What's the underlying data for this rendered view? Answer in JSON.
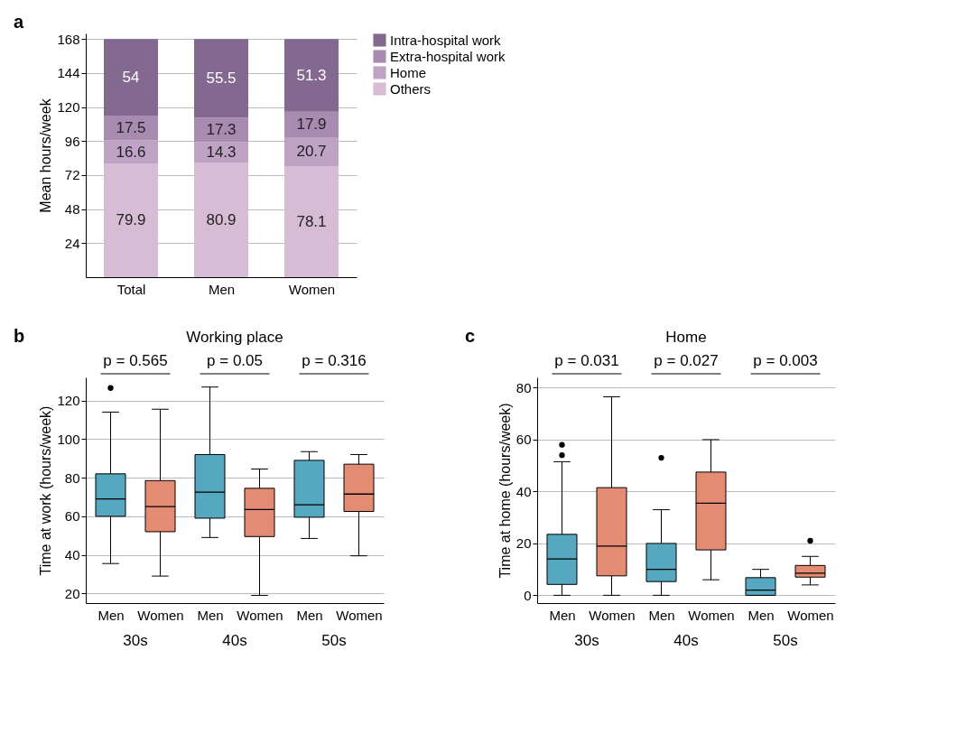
{
  "chart_data": [
    {
      "type": "bar",
      "stacked": true,
      "ylabel": "Mean hours/week",
      "categories": [
        "Total",
        "Men",
        "Women"
      ],
      "series": [
        {
          "name": "Others",
          "color": "#d6bcd4",
          "values": [
            79.9,
            80.9,
            78.1
          ]
        },
        {
          "name": "Home",
          "color": "#bea3c5",
          "values": [
            16.6,
            14.3,
            20.7
          ]
        },
        {
          "name": "Extra-hospital work",
          "color": "#a78bb1",
          "values": [
            17.5,
            17.3,
            17.9
          ]
        },
        {
          "name": "Intra-hospital work",
          "color": "#83688f",
          "values": [
            54,
            55.5,
            51.3
          ]
        }
      ],
      "ylim": [
        0,
        172
      ],
      "yticks": [
        24,
        48,
        72,
        96,
        120,
        144,
        168
      ],
      "grid": "y",
      "legend": "right",
      "data_labels": true,
      "annotations": [
        "a"
      ]
    },
    {
      "type": "box",
      "title": "Working place",
      "ylabel": "Time at work (hours/week)",
      "categories": [
        "Men",
        "Women",
        "Men",
        "Women",
        "Men",
        "Women"
      ],
      "colors": [
        "#55a8bf",
        "#e38c73",
        "#55a8bf",
        "#e38c73",
        "#55a8bf",
        "#e38c73"
      ],
      "boxes": [
        {
          "low": 35.5,
          "q1": 60,
          "median": 69,
          "q3": 82,
          "high": 114,
          "outliers": [
            126.5
          ]
        },
        {
          "low": 29,
          "q1": 52,
          "median": 65,
          "q3": 78.5,
          "high": 115.5
        },
        {
          "low": 49,
          "q1": 59,
          "median": 72.5,
          "q3": 92,
          "high": 127
        },
        {
          "low": 19,
          "q1": 49.5,
          "median": 63.5,
          "q3": 74.5,
          "high": 84.5
        },
        {
          "low": 48.5,
          "q1": 59.5,
          "median": 66,
          "q3": 89,
          "high": 93.5
        },
        {
          "low": 39.5,
          "q1": 62.5,
          "median": 71.5,
          "q3": 87,
          "high": 92
        }
      ],
      "ylim": [
        15,
        132
      ],
      "yticks": [
        20,
        40,
        60,
        80,
        100,
        120
      ],
      "grid": "y",
      "annotations": [
        "b",
        "p = 0.565",
        "p = 0.05",
        "p = 0.316",
        "30s",
        "40s",
        "50s"
      ]
    },
    {
      "type": "box",
      "title": "Home",
      "ylabel": "Time at home (hours/week)",
      "categories": [
        "Men",
        "Women",
        "Men",
        "Women",
        "Men",
        "Women"
      ],
      "colors": [
        "#55a8bf",
        "#e38c73",
        "#55a8bf",
        "#e38c73",
        "#55a8bf",
        "#e38c73"
      ],
      "boxes": [
        {
          "low": 0,
          "q1": 4.2,
          "median": 14,
          "q3": 23.5,
          "high": 51.5,
          "outliers": [
            54,
            58
          ]
        },
        {
          "low": 0,
          "q1": 7.5,
          "median": 19,
          "q3": 41.5,
          "high": 76.5
        },
        {
          "low": 0,
          "q1": 5.3,
          "median": 10,
          "q3": 20,
          "high": 33,
          "outliers": [
            53
          ]
        },
        {
          "low": 6,
          "q1": 17.5,
          "median": 35.5,
          "q3": 47.5,
          "high": 60
        },
        {
          "low": 0,
          "q1": 0,
          "median": 2,
          "q3": 6.8,
          "high": 10
        },
        {
          "low": 4,
          "q1": 7,
          "median": 8.5,
          "q3": 11.5,
          "high": 15,
          "outliers": [
            21
          ]
        }
      ],
      "ylim": [
        -3,
        84
      ],
      "yticks": [
        0,
        20,
        40,
        60,
        80
      ],
      "grid": "y",
      "annotations": [
        "c",
        "p = 0.031",
        "p = 0.027",
        "p = 0.003",
        "30s",
        "40s",
        "50s"
      ]
    }
  ]
}
